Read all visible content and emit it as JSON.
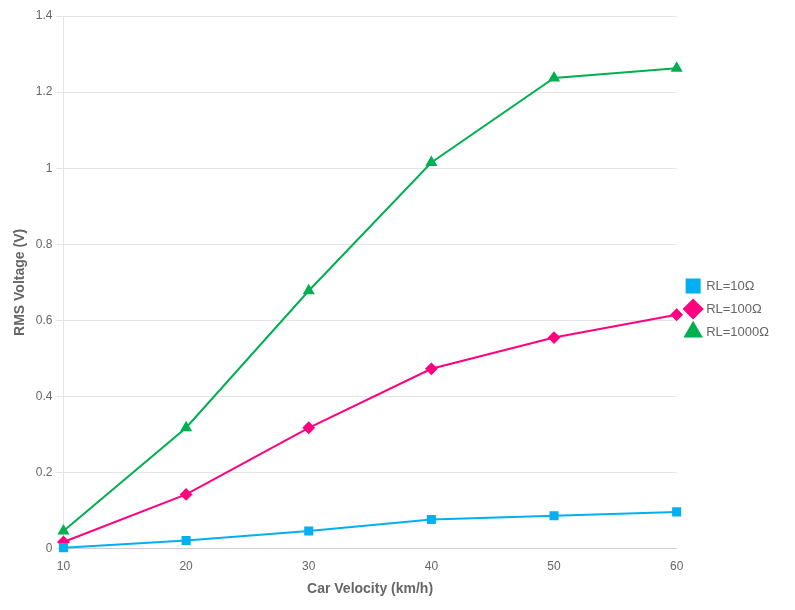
{
  "chart_data": {
    "type": "line",
    "x_label": "Car Velocity (km/h)",
    "y_label": "RMS Voltage (V)",
    "x": [
      10,
      20,
      30,
      40,
      50,
      60
    ],
    "series": [
      {
        "name": "RL=10Ω",
        "color": "#00B0F0",
        "marker": "square",
        "values": [
          0.003,
          0.022,
          0.047,
          0.077,
          0.087,
          0.097
        ]
      },
      {
        "name": "RL=100Ω",
        "color": "#FF007F",
        "marker": "diamond",
        "values": [
          0.018,
          0.143,
          0.318,
          0.473,
          0.555,
          0.615
        ]
      },
      {
        "name": "RL=1000Ω",
        "color": "#00B050",
        "marker": "triangle",
        "values": [
          0.047,
          0.318,
          0.678,
          1.015,
          1.237,
          1.263
        ]
      }
    ],
    "xlim": [
      10,
      60
    ],
    "xticks": [
      10,
      20,
      30,
      40,
      50,
      60
    ],
    "ylim": [
      0,
      1.4
    ],
    "yticks": [
      0,
      0.2,
      0.4,
      0.6,
      0.8,
      1,
      1.2,
      1.4
    ],
    "grid": "y",
    "legend": "right"
  }
}
